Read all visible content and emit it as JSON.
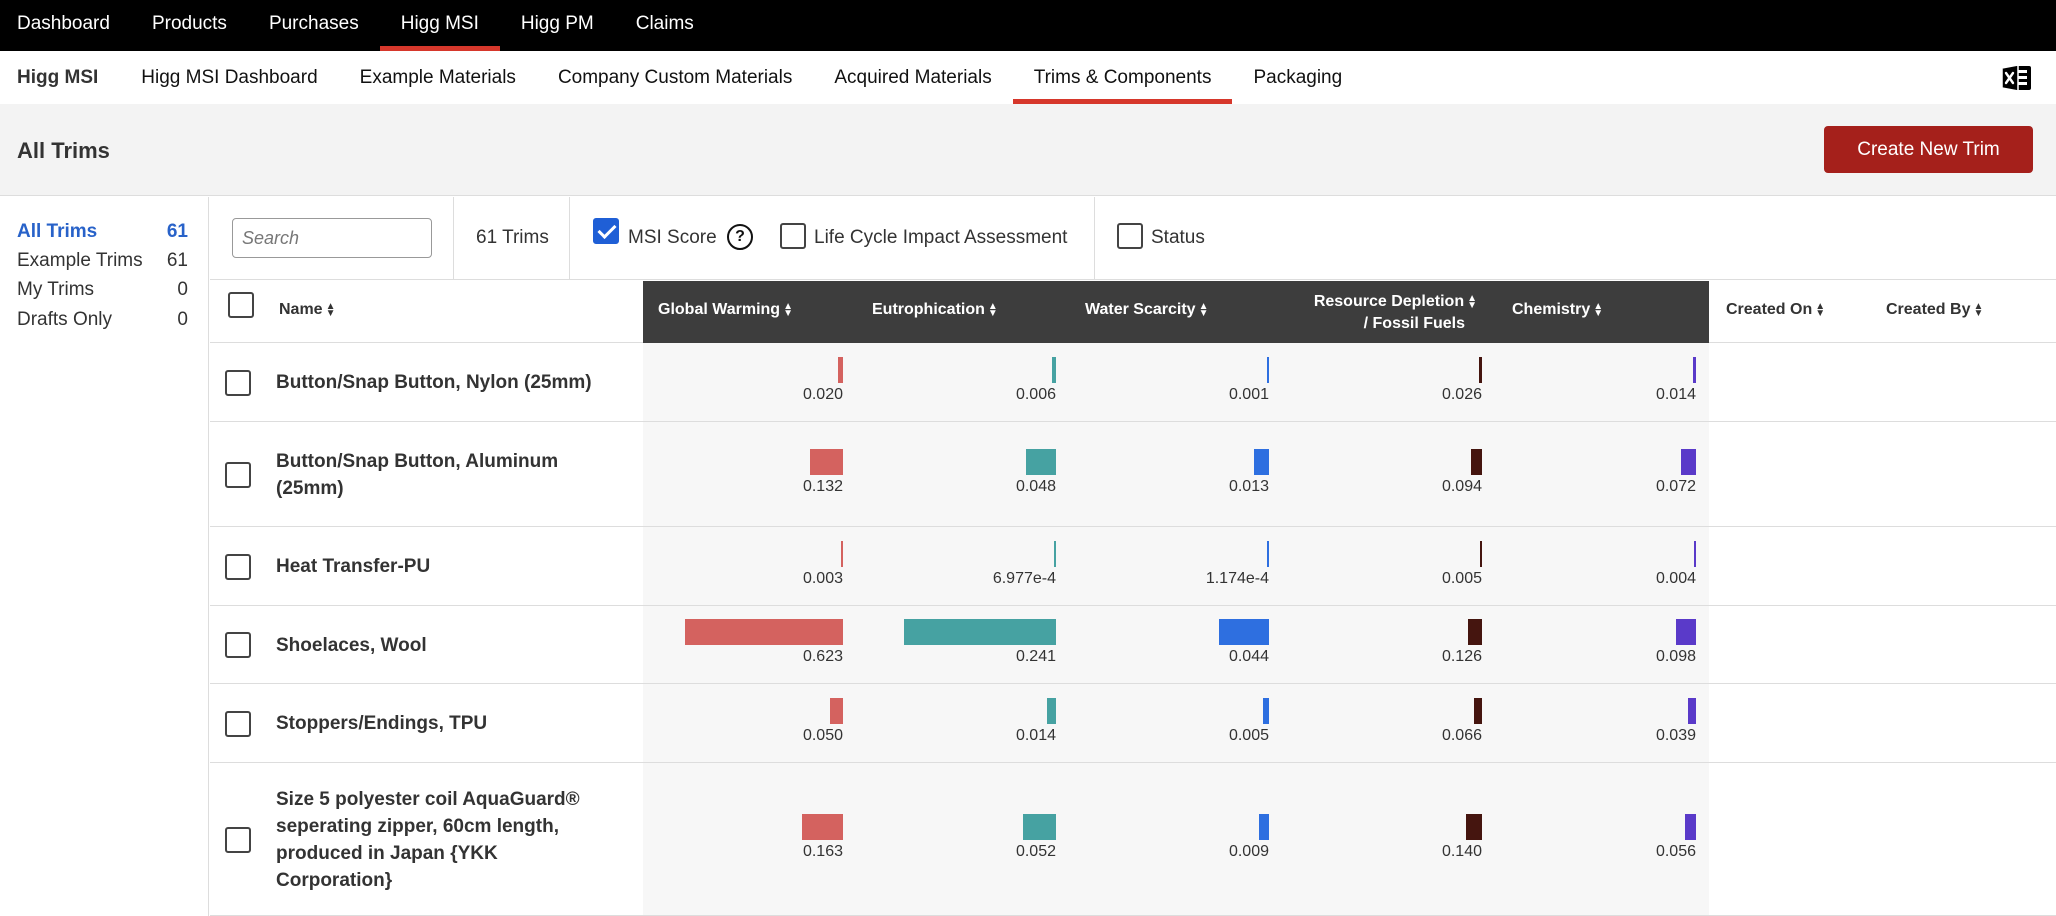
{
  "top_nav": {
    "items": [
      "Dashboard",
      "Products",
      "Purchases",
      "Higg MSI",
      "Higg PM",
      "Claims"
    ],
    "active_index": 3
  },
  "sub_nav": {
    "brand": "Higg MSI",
    "items": [
      "Higg MSI Dashboard",
      "Example Materials",
      "Company Custom Materials",
      "Acquired Materials",
      "Trims & Components",
      "Packaging"
    ],
    "active_index": 4,
    "export_icon": "excel-export-icon"
  },
  "header": {
    "title": "All Trims",
    "create_button": "Create New Trim"
  },
  "sidebar": {
    "items": [
      {
        "label": "All Trims",
        "count": "61"
      },
      {
        "label": "Example Trims",
        "count": "61"
      },
      {
        "label": "My Trims",
        "count": "0"
      },
      {
        "label": "Drafts Only",
        "count": "0"
      }
    ],
    "active_index": 0
  },
  "toolbar": {
    "search_placeholder": "Search",
    "count": "61 Trims",
    "msi_score": {
      "label": "MSI Score",
      "checked": true
    },
    "help_icon": "?",
    "lcia": {
      "label": "Life Cycle Impact Assessment",
      "checked": false
    },
    "status": {
      "label": "Status",
      "checked": false
    }
  },
  "table": {
    "columns": {
      "name": "Name",
      "global_warming": "Global Warming",
      "eutrophication": "Eutrophication",
      "water_scarcity": "Water Scarcity",
      "resource_depletion_1": "Resource Depletion",
      "resource_depletion_2": "/ Fossil Fuels",
      "chemistry": "Chemistry",
      "created_on": "Created On",
      "created_by": "Created By"
    },
    "metric_colors": {
      "global_warming": "#d4625f",
      "eutrophication": "#46a2a2",
      "water_scarcity": "#2e6fe0",
      "resource_depletion": "#45150f",
      "chemistry": "#5a3ac9"
    },
    "metric_max": {
      "global_warming": 0.623,
      "eutrophication": 0.241,
      "water_scarcity": 0.044,
      "resource_depletion": 0.14,
      "chemistry": 0.098
    },
    "rows": [
      {
        "name_lines": [
          "Button/Snap Button, Nylon (25mm)"
        ],
        "values": {
          "global_warming": "0.020",
          "eutrophication": "0.006",
          "water_scarcity": "0.001",
          "resource_depletion": "0.026",
          "chemistry": "0.014"
        }
      },
      {
        "name_lines": [
          "Button/Snap Button, Aluminum",
          "(25mm)"
        ],
        "values": {
          "global_warming": "0.132",
          "eutrophication": "0.048",
          "water_scarcity": "0.013",
          "resource_depletion": "0.094",
          "chemistry": "0.072"
        }
      },
      {
        "name_lines": [
          "Heat Transfer-PU"
        ],
        "values": {
          "global_warming": "0.003",
          "eutrophication": "6.977e-4",
          "water_scarcity": "1.174e-4",
          "resource_depletion": "0.005",
          "chemistry": "0.004"
        }
      },
      {
        "name_lines": [
          "Shoelaces, Wool"
        ],
        "values": {
          "global_warming": "0.623",
          "eutrophication": "0.241",
          "water_scarcity": "0.044",
          "resource_depletion": "0.126",
          "chemistry": "0.098"
        }
      },
      {
        "name_lines": [
          "Stoppers/Endings, TPU"
        ],
        "values": {
          "global_warming": "0.050",
          "eutrophication": "0.014",
          "water_scarcity": "0.005",
          "resource_depletion": "0.066",
          "chemistry": "0.039"
        }
      },
      {
        "name_lines": [
          "Size 5 polyester coil AquaGuard®",
          "seperating zipper, 60cm length,",
          "produced in Japan {YKK",
          "Corporation}"
        ],
        "values": {
          "global_warming": "0.163",
          "eutrophication": "0.052",
          "water_scarcity": "0.009",
          "resource_depletion": "0.140",
          "chemistry": "0.056"
        }
      }
    ]
  }
}
